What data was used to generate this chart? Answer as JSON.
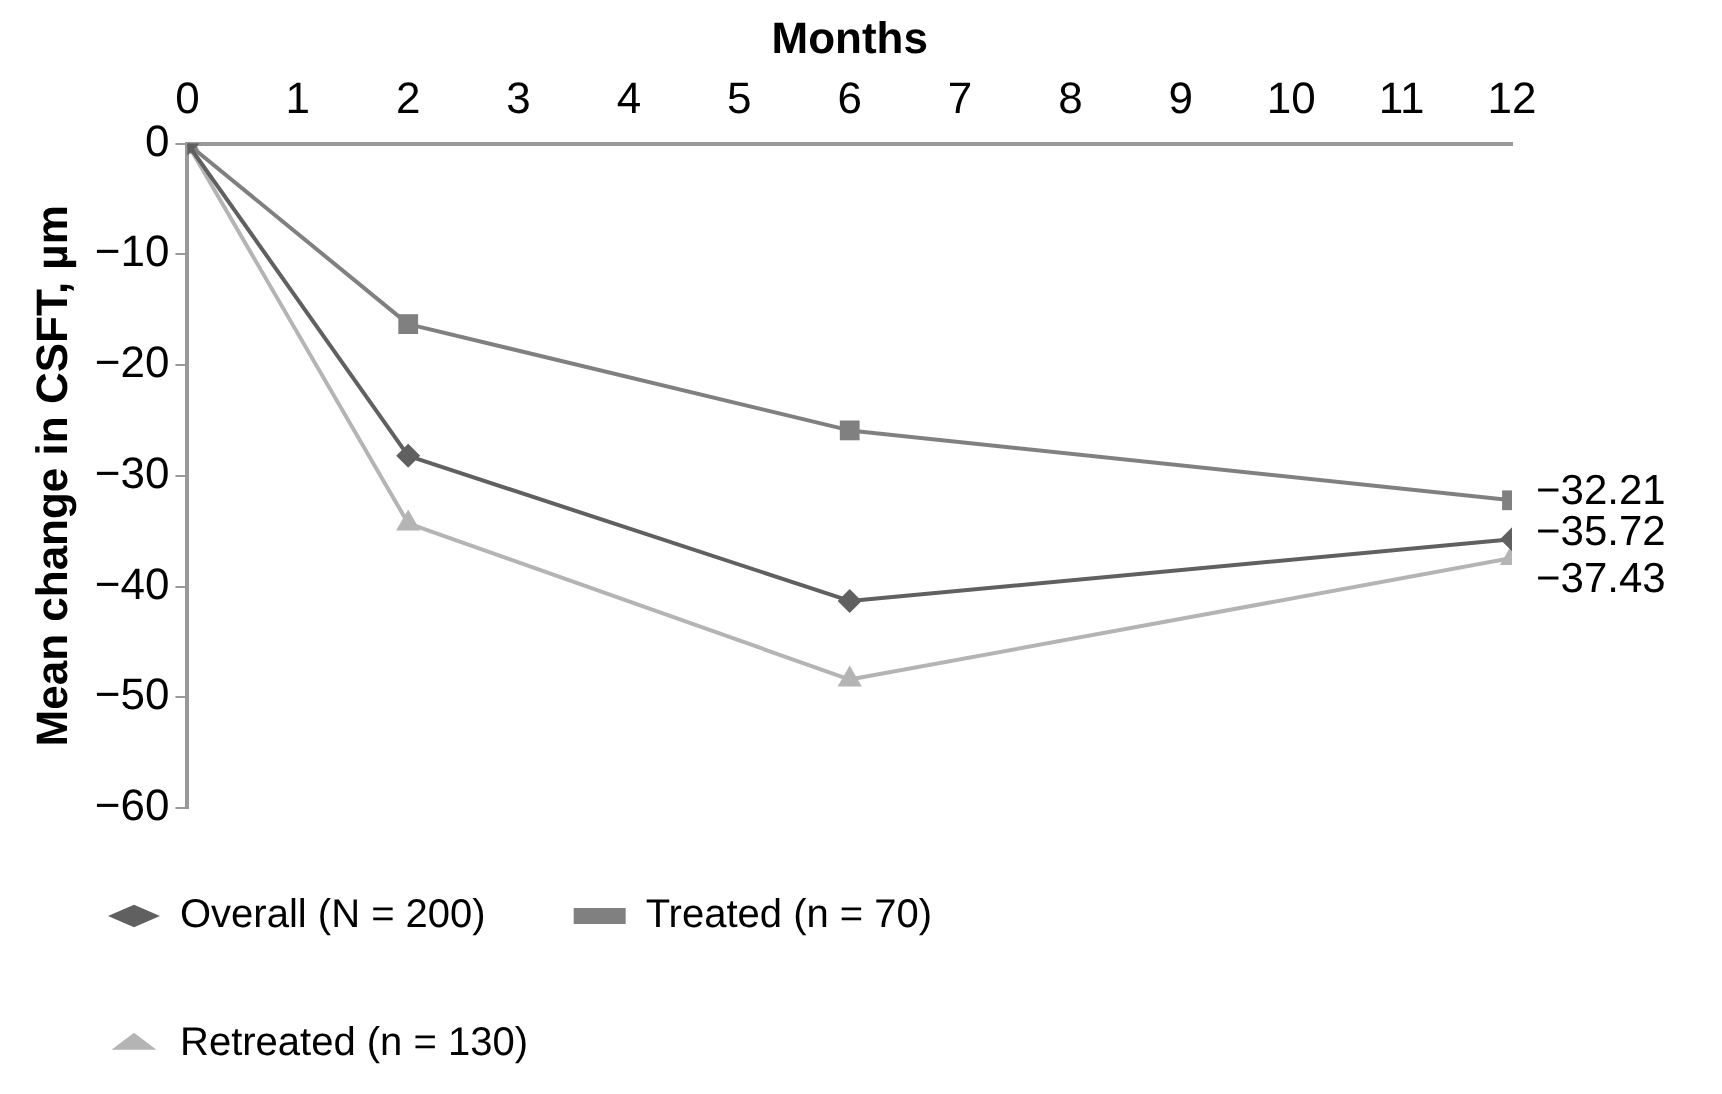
{
  "chart_data": {
    "type": "line",
    "xlabel": "Months",
    "ylabel": "Mean change in CSFT, µm",
    "x": [
      0,
      2,
      6,
      12
    ],
    "series": [
      {
        "name": "Overall (N = 200)",
        "color": "#606060",
        "marker": "diamond",
        "values": [
          0,
          -28.2,
          -41.3,
          -35.72
        ],
        "value_labels": [
          null,
          null,
          null,
          "−35.72"
        ]
      },
      {
        "name": "Treated (n = 70)",
        "color": "#808080",
        "marker": "square",
        "values": [
          0,
          -16.3,
          -25.9,
          -32.21
        ],
        "value_labels": [
          null,
          null,
          null,
          "−32.21"
        ]
      },
      {
        "name": "Retreated (n = 130)",
        "color": "#b4b4b4",
        "marker": "triangle",
        "values": [
          0,
          -34.3,
          -48.4,
          -37.43
        ],
        "value_labels": [
          null,
          null,
          null,
          "−37.43"
        ]
      }
    ],
    "xlim": [
      0,
      12
    ],
    "xticks": [
      0,
      1,
      2,
      3,
      4,
      5,
      6,
      7,
      8,
      9,
      10,
      11,
      12
    ],
    "ylim": [
      -60,
      0
    ],
    "yticks": [
      {
        "value": -60,
        "label": "−60"
      },
      {
        "value": -50,
        "label": "−50"
      },
      {
        "value": -40,
        "label": "−40"
      },
      {
        "value": -30,
        "label": "−30"
      },
      {
        "value": -20,
        "label": "−20"
      },
      {
        "value": -10,
        "label": "−10"
      },
      0
    ],
    "grid": false,
    "legend": "bottom"
  }
}
